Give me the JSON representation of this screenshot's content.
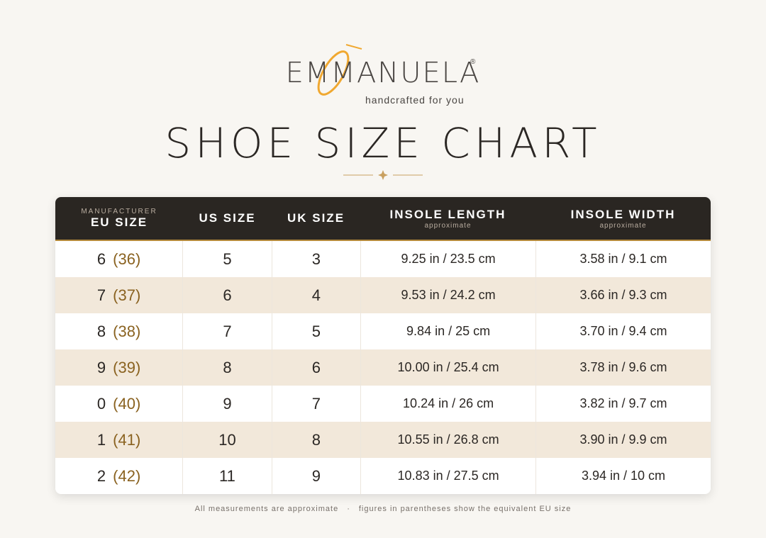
{
  "header": {
    "brand": "EMMANUELA",
    "registered": "®",
    "tagline": "handcrafted for you",
    "title": "SHOE SIZE CHART"
  },
  "table": {
    "columns": [
      {
        "over": "MANUFACTURER",
        "label": "EU SIZE"
      },
      {
        "label": "US SIZE"
      },
      {
        "label": "UK SIZE"
      },
      {
        "label": "INSOLE LENGTH",
        "sub": "approximate"
      },
      {
        "label": "INSOLE WIDTH",
        "sub": "approximate"
      }
    ],
    "rows": [
      [
        {
          "size": "6",
          "eu": "(36)"
        },
        "5",
        "3",
        "9.25 in / 23.5 cm",
        "3.58 in / 9.1 cm"
      ],
      [
        {
          "size": "7",
          "eu": "(37)"
        },
        "6",
        "4",
        "9.53 in / 24.2 cm",
        "3.66 in / 9.3 cm"
      ],
      [
        {
          "size": "8",
          "eu": "(38)"
        },
        "7",
        "5",
        "9.84 in / 25 cm",
        "3.70 in / 9.4 cm"
      ],
      [
        {
          "size": "9",
          "eu": "(39)"
        },
        "8",
        "6",
        "10.00 in / 25.4 cm",
        "3.78 in / 9.6 cm"
      ],
      [
        {
          "size": "0",
          "eu": "(40)"
        },
        "9",
        "7",
        "10.24 in / 26 cm",
        "3.82 in / 9.7 cm"
      ],
      [
        {
          "size": "1",
          "eu": "(41)"
        },
        "10",
        "8",
        "10.55 in / 26.8 cm",
        "3.90 in / 9.9 cm"
      ],
      [
        {
          "size": "2",
          "eu": "(42)"
        },
        "11",
        "9",
        "10.83 in / 27.5 cm",
        "3.94 in / 10 cm"
      ]
    ]
  },
  "footer": [
    "All measurements are approximate",
    "·",
    "figures in parentheses show the equivalent EU size"
  ]
}
